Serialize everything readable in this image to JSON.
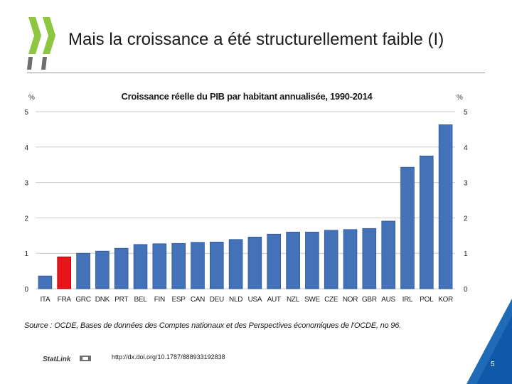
{
  "slide": {
    "title": "Mais la croissance a été structurellement faible (I)",
    "page_number": "5"
  },
  "chart_data": {
    "type": "bar",
    "title": "Croissance réelle du PIB par habitant annualisée, 1990-2014",
    "y_unit_left": "%",
    "y_unit_right": "%",
    "ylim": [
      0,
      5
    ],
    "yticks": [
      0,
      1,
      2,
      3,
      4,
      5
    ],
    "categories": [
      "ITA",
      "FRA",
      "GRC",
      "DNK",
      "PRT",
      "BEL",
      "FIN",
      "ESP",
      "CAN",
      "DEU",
      "NLD",
      "USA",
      "AUT",
      "NZL",
      "SWE",
      "CZE",
      "NOR",
      "GBR",
      "AUS",
      "IRL",
      "POL",
      "KOR"
    ],
    "values": [
      0.36,
      0.9,
      1.0,
      1.06,
      1.14,
      1.25,
      1.27,
      1.28,
      1.31,
      1.32,
      1.39,
      1.46,
      1.54,
      1.6,
      1.6,
      1.65,
      1.67,
      1.7,
      1.91,
      3.43,
      3.75,
      4.63
    ],
    "highlight_category": "FRA",
    "colors": {
      "bar": "#4472b8",
      "bar_edge": "#2f5597",
      "highlight": "#e8141b",
      "highlight_edge": "#a00000",
      "grid": "#c8c8c8"
    },
    "grid": true
  },
  "source": {
    "label": "Source :",
    "text": "OCDE, Bases de données des Comptes nationaux  et des Perspectives économiques de l'OCDE, no 96."
  },
  "statlink": {
    "url": "http://dx.doi.org/10.1787/888933192838"
  },
  "icons": {
    "logo": "oecd-chevron-logo",
    "statlink": "statlink-logo",
    "corner": "blue-corner-decoration"
  }
}
